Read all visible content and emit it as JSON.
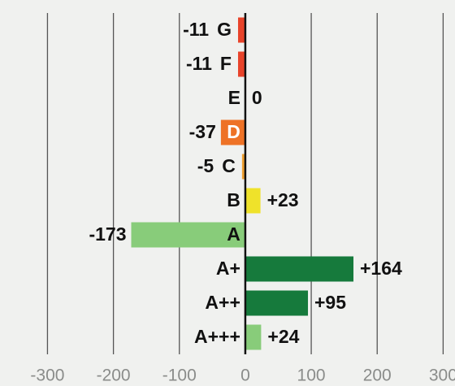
{
  "chart_data": {
    "type": "bar",
    "orientation": "horizontal",
    "categories": [
      "G",
      "F",
      "E",
      "D",
      "C",
      "B",
      "A",
      "A+",
      "A++",
      "A+++"
    ],
    "values": [
      -11,
      -11,
      0,
      -37,
      -5,
      23,
      -173,
      164,
      95,
      24
    ],
    "value_labels": [
      "-11",
      "-11",
      "0",
      "-37",
      "-5",
      "+23",
      "-173",
      "+164",
      "+95",
      "+24"
    ],
    "colors": [
      "#e8432a",
      "#e8432a",
      "#e8432a",
      "#ee7226",
      "#f0a030",
      "#efe22a",
      "#88cc7a",
      "#167a3c",
      "#167a3c",
      "#88cc7a"
    ],
    "inside_label_colors": [
      "#111111",
      "#111111",
      "#111111",
      "#ffffff",
      "#111111",
      "#111111",
      "#111111",
      "#111111",
      "#111111",
      "#111111"
    ],
    "xlim": [
      -372,
      318
    ],
    "xticks": [
      -300,
      -200,
      -100,
      0,
      100,
      200,
      300
    ],
    "grid": true
  }
}
